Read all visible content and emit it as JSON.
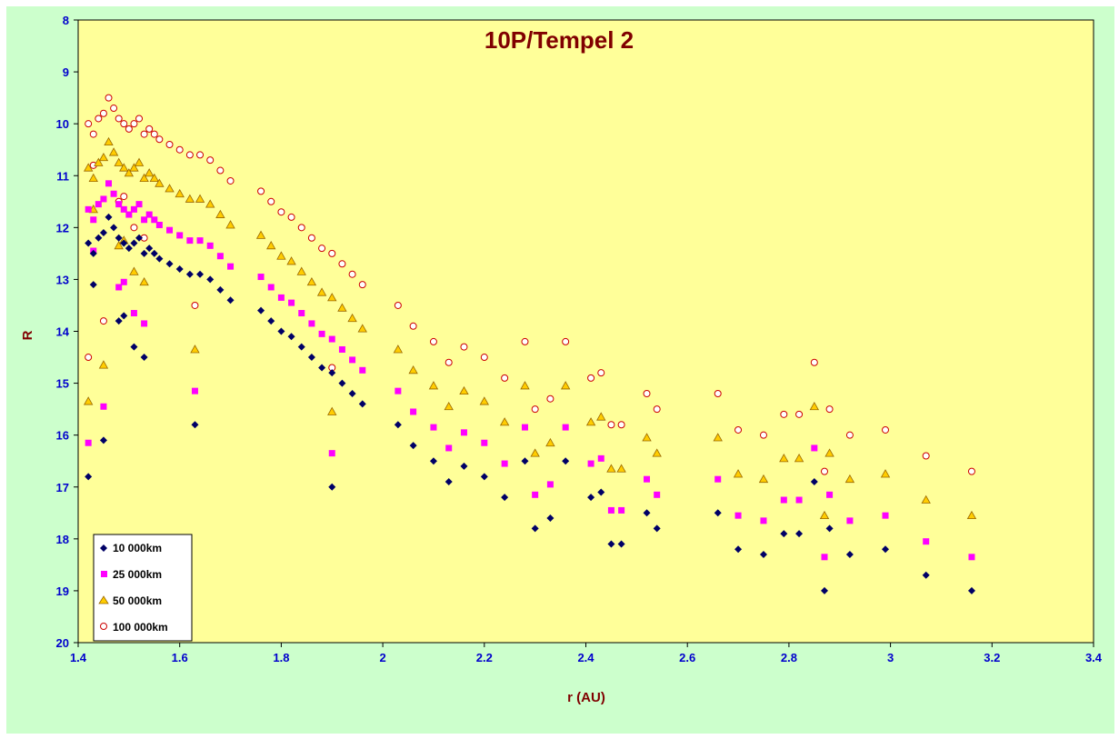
{
  "colors": {
    "chart_area": "#ccffcc",
    "plot_area": "#ffff99",
    "axis_text": "#0000cc",
    "title_text": "#800000",
    "series_10000": "#000066",
    "series_25000": "#ff00ff",
    "series_50000_fill": "#ffcc00",
    "series_50000_edge": "#996600",
    "series_100000_edge": "#cc0000"
  },
  "chart_data": {
    "type": "scatter",
    "title": "10P/Tempel 2",
    "xlabel": "r (AU)",
    "ylabel": "R",
    "xlim": [
      1.4,
      3.4
    ],
    "ylim": [
      8,
      20
    ],
    "y_inverted": true,
    "x_ticks": [
      "1.4",
      "1.6",
      "1.8",
      "2",
      "2.2",
      "2.4",
      "2.6",
      "2.8",
      "3",
      "3.2",
      "3.4"
    ],
    "y_ticks": [
      "8",
      "9",
      "10",
      "11",
      "12",
      "13",
      "14",
      "15",
      "16",
      "17",
      "18",
      "19",
      "20"
    ],
    "grid": false,
    "legend_position": "bottom-left",
    "base_points": [
      [
        1.42,
        12.3
      ],
      [
        1.43,
        12.5
      ],
      [
        1.44,
        12.2
      ],
      [
        1.45,
        12.1
      ],
      [
        1.46,
        11.8
      ],
      [
        1.47,
        12.0
      ],
      [
        1.48,
        12.2
      ],
      [
        1.49,
        12.3
      ],
      [
        1.5,
        12.4
      ],
      [
        1.51,
        12.3
      ],
      [
        1.52,
        12.2
      ],
      [
        1.53,
        12.5
      ],
      [
        1.54,
        12.4
      ],
      [
        1.55,
        12.5
      ],
      [
        1.56,
        12.6
      ],
      [
        1.58,
        12.7
      ],
      [
        1.6,
        12.8
      ],
      [
        1.62,
        12.9
      ],
      [
        1.64,
        12.9
      ],
      [
        1.66,
        13.0
      ],
      [
        1.68,
        13.2
      ],
      [
        1.7,
        13.4
      ],
      [
        1.43,
        13.1
      ],
      [
        1.48,
        13.8
      ],
      [
        1.49,
        13.7
      ],
      [
        1.51,
        14.3
      ],
      [
        1.53,
        14.5
      ],
      [
        1.42,
        16.8
      ],
      [
        1.45,
        16.1
      ],
      [
        1.63,
        15.8
      ],
      [
        1.76,
        13.6
      ],
      [
        1.78,
        13.8
      ],
      [
        1.8,
        14.0
      ],
      [
        1.82,
        14.1
      ],
      [
        1.84,
        14.3
      ],
      [
        1.86,
        14.5
      ],
      [
        1.88,
        14.7
      ],
      [
        1.9,
        14.8
      ],
      [
        1.92,
        15.0
      ],
      [
        1.94,
        15.2
      ],
      [
        1.96,
        15.4
      ],
      [
        1.9,
        17.0
      ],
      [
        2.03,
        15.8
      ],
      [
        2.06,
        16.2
      ],
      [
        2.1,
        16.5
      ],
      [
        2.13,
        16.9
      ],
      [
        2.16,
        16.6
      ],
      [
        2.2,
        16.8
      ],
      [
        2.24,
        17.2
      ],
      [
        2.28,
        16.5
      ],
      [
        2.3,
        17.8
      ],
      [
        2.33,
        17.6
      ],
      [
        2.36,
        16.5
      ],
      [
        2.41,
        17.2
      ],
      [
        2.43,
        17.1
      ],
      [
        2.45,
        18.1
      ],
      [
        2.47,
        18.1
      ],
      [
        2.52,
        17.5
      ],
      [
        2.54,
        17.8
      ],
      [
        2.66,
        17.5
      ],
      [
        2.7,
        18.2
      ],
      [
        2.75,
        18.3
      ],
      [
        2.79,
        17.9
      ],
      [
        2.82,
        17.9
      ],
      [
        2.85,
        16.9
      ],
      [
        2.88,
        17.8
      ],
      [
        2.92,
        18.3
      ],
      [
        2.99,
        18.2
      ],
      [
        3.07,
        18.7
      ],
      [
        3.16,
        19.0
      ],
      [
        2.87,
        19.0
      ]
    ],
    "series": [
      {
        "name": "10 000km",
        "offset": 0
      },
      {
        "name": "25 000km",
        "offset": -0.65
      },
      {
        "name": "50 000km",
        "offset": -1.45
      },
      {
        "name": "100 000km",
        "offset": -2.3
      }
    ]
  },
  "legend": {
    "items": [
      "10 000km",
      "25 000km",
      "50 000km",
      "100 000km"
    ]
  }
}
